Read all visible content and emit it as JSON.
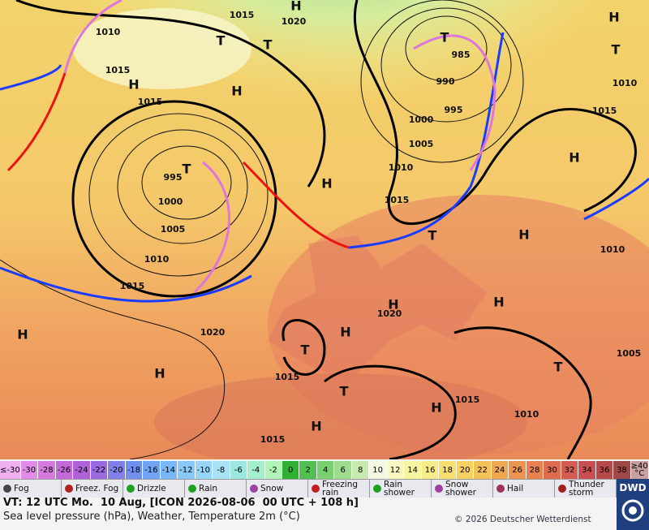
{
  "map": {
    "labels": [
      "1010",
      "1015",
      "1015",
      "995",
      "1000",
      "1005",
      "1010",
      "1015",
      "1020",
      "1015",
      "1020",
      "985",
      "990",
      "995",
      "1000",
      "1005",
      "1010",
      "1015",
      "1015",
      "1010",
      "1010",
      "1020",
      "1015",
      "1015",
      "1015",
      "1010",
      "1005",
      "H",
      "H",
      "H",
      "H",
      "H",
      "H",
      "H",
      "H",
      "H",
      "H",
      "H",
      "H",
      "H",
      "H",
      "T",
      "T",
      "T",
      "T",
      "T",
      "T",
      "T",
      "T",
      "T"
    ]
  },
  "color_scale": [
    {
      "label": "≤-30",
      "color": "#f0b0f0"
    },
    {
      "label": "-30",
      "color": "#e08ce8"
    },
    {
      "label": "-28",
      "color": "#d47ae0"
    },
    {
      "label": "-26",
      "color": "#c46ad8"
    },
    {
      "label": "-24",
      "color": "#b060d8"
    },
    {
      "label": "-22",
      "color": "#9c6ae0"
    },
    {
      "label": "-20",
      "color": "#8080e8"
    },
    {
      "label": "-18",
      "color": "#7090f0"
    },
    {
      "label": "-16",
      "color": "#70a4f4"
    },
    {
      "label": "-14",
      "color": "#78b8f8"
    },
    {
      "label": "-12",
      "color": "#88c8f8"
    },
    {
      "label": "-10",
      "color": "#98d6f8"
    },
    {
      "label": "-8",
      "color": "#a8e2f4"
    },
    {
      "label": "-6",
      "color": "#9ce8e0"
    },
    {
      "label": "-4",
      "color": "#a4f0cc"
    },
    {
      "label": "-2",
      "color": "#b0f4b8"
    },
    {
      "label": "0",
      "color": "#30b030"
    },
    {
      "label": "2",
      "color": "#50c050"
    },
    {
      "label": "4",
      "color": "#78d070"
    },
    {
      "label": "6",
      "color": "#a0dc90"
    },
    {
      "label": "8",
      "color": "#c8eab0"
    },
    {
      "label": "10",
      "color": "#f4f8e0"
    },
    {
      "label": "12",
      "color": "#f8f8c0"
    },
    {
      "label": "14",
      "color": "#f8f4a0"
    },
    {
      "label": "16",
      "color": "#f8ec88"
    },
    {
      "label": "18",
      "color": "#f8e070"
    },
    {
      "label": "20",
      "color": "#f8d060"
    },
    {
      "label": "22",
      "color": "#f4c058"
    },
    {
      "label": "24",
      "color": "#f0a850"
    },
    {
      "label": "26",
      "color": "#ec9450"
    },
    {
      "label": "28",
      "color": "#e88050"
    },
    {
      "label": "30",
      "color": "#e06c50"
    },
    {
      "label": "32",
      "color": "#d45c50"
    },
    {
      "label": "34",
      "color": "#c85050"
    },
    {
      "label": "36",
      "color": "#b84848"
    },
    {
      "label": "38",
      "color": "#a04848"
    },
    {
      "label": "≥40 °C",
      "color": "#c8a0a0"
    }
  ],
  "legend": [
    {
      "label": "Fog",
      "color": "#444"
    },
    {
      "label": "Freez. Fog",
      "color": "#b02020"
    },
    {
      "label": "Drizzle",
      "color": "#20a020"
    },
    {
      "label": "Rain",
      "color": "#20a020"
    },
    {
      "label": "Snow",
      "color": "#a040a0"
    },
    {
      "label": "Freezing rain",
      "color": "#c02020"
    },
    {
      "label": "Rain shower",
      "color": "#20a020"
    },
    {
      "label": "Snow shower",
      "color": "#a040a0"
    },
    {
      "label": "Hail",
      "color": "#a03060"
    },
    {
      "label": "Thunder storm",
      "color": "#a02020"
    }
  ],
  "footer": {
    "valid_time": "VT: 12 UTC Mo.  10 Aug, [ICON 2026-08-06  00 UTC + 108 h]",
    "description": "Sea level pressure (hPa), Weather, Temperature 2m (°C)",
    "copyright": "© 2026 Deutscher Wetterdienst",
    "logo": "DWD"
  }
}
